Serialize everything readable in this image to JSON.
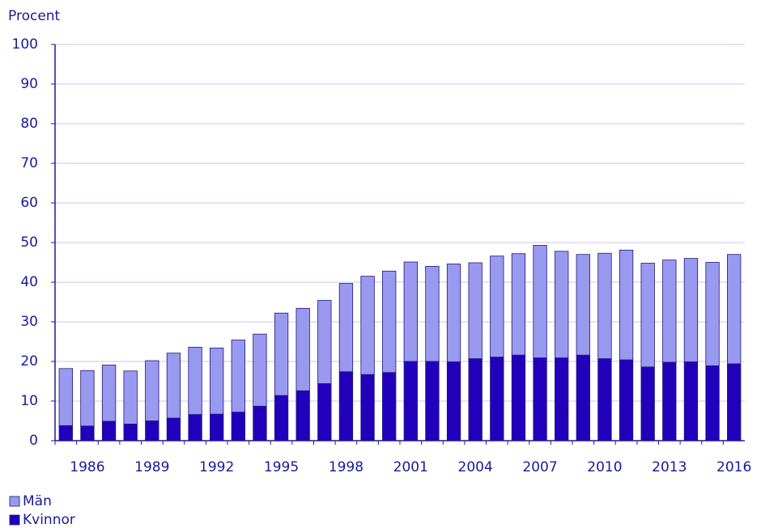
{
  "chart_data": {
    "type": "stacked_bar",
    "y_label": "Procent",
    "categories": [
      null,
      "1986",
      null,
      null,
      "1989",
      null,
      null,
      "1992",
      null,
      null,
      "1995",
      null,
      null,
      "1998",
      null,
      null,
      "2001",
      null,
      null,
      "2004",
      null,
      null,
      "2007",
      null,
      null,
      "2010",
      null,
      null,
      "2013",
      null,
      null,
      "2016"
    ],
    "series": [
      {
        "name": "Kvinnor",
        "color": "#2200bb",
        "values": [
          3.8,
          3.7,
          4.9,
          4.2,
          5.0,
          5.7,
          6.6,
          6.7,
          7.2,
          8.7,
          11.4,
          12.6,
          14.4,
          17.4,
          16.7,
          17.2,
          20.0,
          20.0,
          19.9,
          20.7,
          21.1,
          21.6,
          20.9,
          20.9,
          21.6,
          20.7,
          20.4,
          18.6,
          19.8,
          19.9,
          18.9,
          19.4
        ]
      },
      {
        "name": "Män",
        "color": "#9999ef",
        "values": [
          14.4,
          14.0,
          14.2,
          13.4,
          15.2,
          16.4,
          17.0,
          16.7,
          18.2,
          18.2,
          20.8,
          20.8,
          21.0,
          22.3,
          24.8,
          25.6,
          25.1,
          24.0,
          24.7,
          24.2,
          25.5,
          25.6,
          28.4,
          26.9,
          25.4,
          26.6,
          27.7,
          26.2,
          25.8,
          26.1,
          26.1,
          27.6
        ]
      }
    ],
    "ylim": [
      0,
      100
    ],
    "yticks": [
      0,
      10,
      20,
      30,
      40,
      50,
      60,
      70,
      80,
      90,
      100
    ],
    "grid": true,
    "legend": "bottom-left"
  }
}
